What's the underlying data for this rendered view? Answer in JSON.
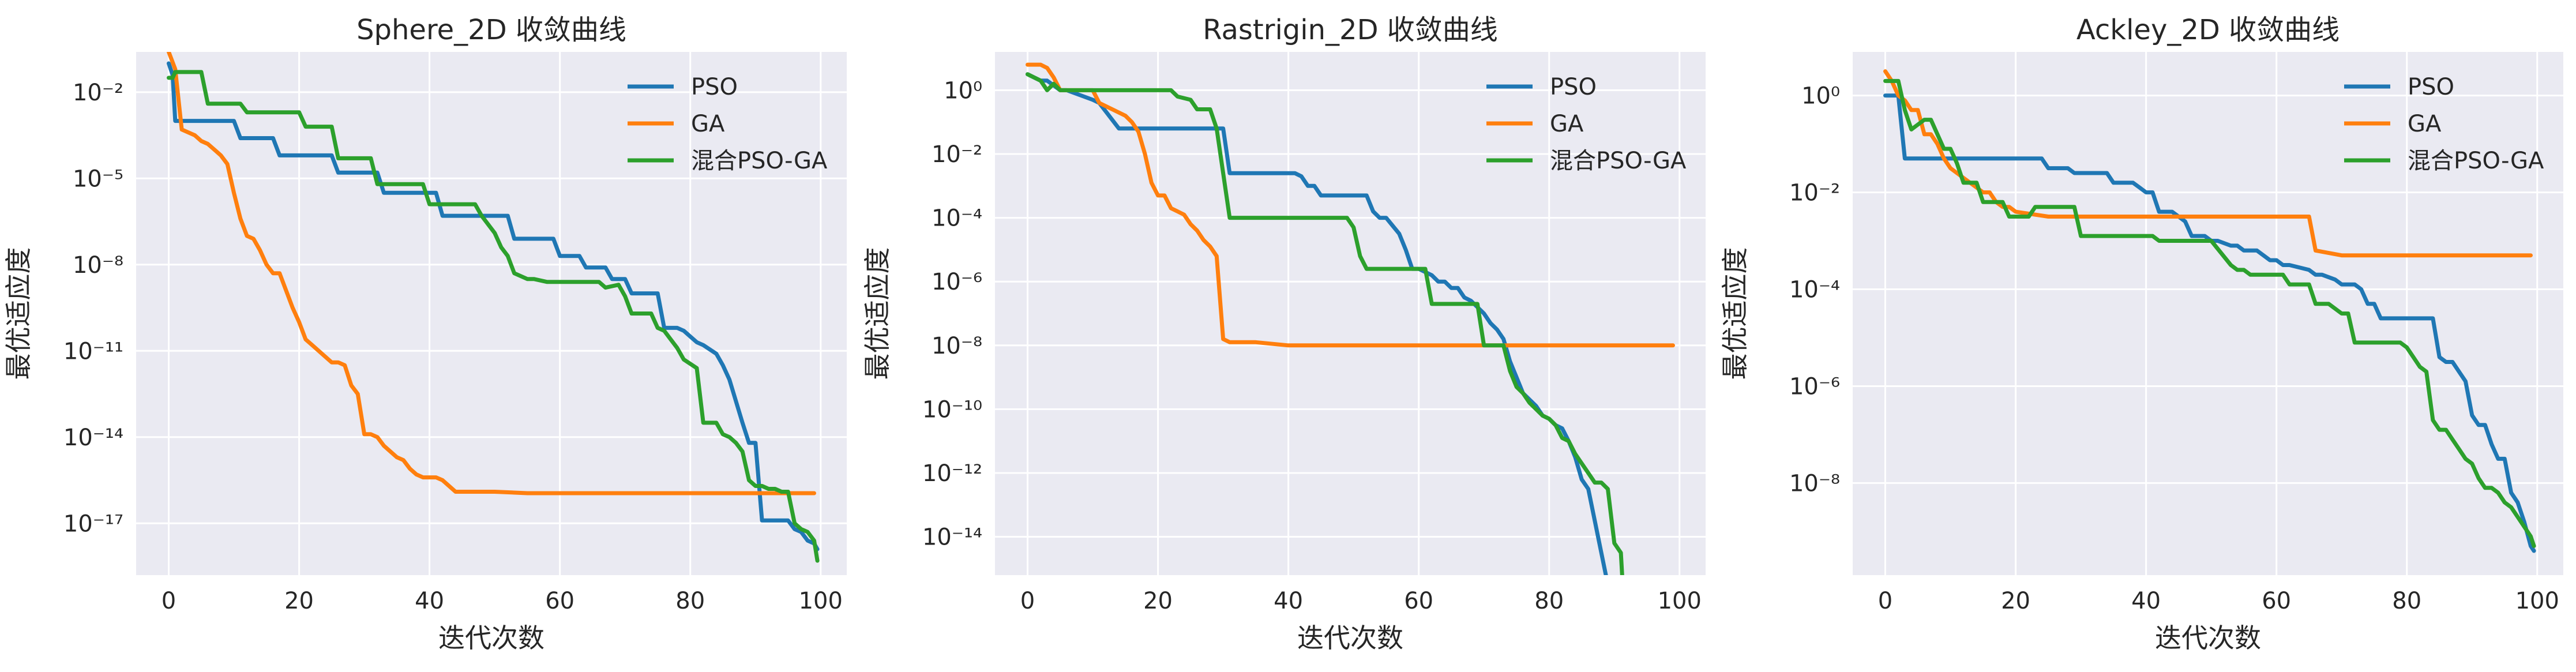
{
  "chart_data": [
    {
      "type": "line",
      "title": "Sphere_2D 收敛曲线",
      "xlabel": "迭代次数",
      "ylabel": "最优适应度",
      "yscale": "log",
      "xlim": [
        -5,
        104
      ],
      "ylim_exp": [
        -18.8,
        -0.6
      ],
      "xticks": [
        0,
        20,
        40,
        60,
        80,
        100
      ],
      "yticks_exp": [
        -17,
        -14,
        -11,
        -8,
        -5,
        -2
      ],
      "grid": true,
      "legend": "top-right",
      "series": [
        {
          "name": "PSO",
          "color": "#1f77b4",
          "x": [
            0,
            0.6,
            1,
            10,
            11,
            16,
            17,
            25,
            26,
            32,
            33,
            41,
            42,
            52,
            53,
            59,
            60,
            63,
            64,
            67,
            68,
            70,
            71,
            75,
            76,
            78,
            79,
            80,
            81,
            82,
            84,
            85,
            86,
            88,
            89,
            90,
            91,
            95,
            96,
            97,
            98,
            99,
            99.5
          ],
          "y_exp": [
            -1,
            -1.4,
            -3,
            -3,
            -3.6,
            -3.6,
            -4.2,
            -4.2,
            -4.8,
            -4.8,
            -5.5,
            -5.5,
            -6.3,
            -6.3,
            -7.1,
            -7.1,
            -7.7,
            -7.7,
            -8.1,
            -8.1,
            -8.5,
            -8.5,
            -9,
            -9,
            -10.2,
            -10.2,
            -10.3,
            -10.5,
            -10.7,
            -10.8,
            -11.1,
            -11.5,
            -12,
            -13.5,
            -14.2,
            -14.2,
            -16.9,
            -16.9,
            -17.2,
            -17.3,
            -17.6,
            -17.7,
            -17.9
          ]
        },
        {
          "name": "GA",
          "color": "#ff7f0e",
          "x": [
            0,
            1,
            2,
            4,
            5,
            6,
            7,
            8,
            9,
            10,
            11,
            12,
            13,
            14,
            15,
            16,
            17,
            18,
            19,
            20,
            21,
            22,
            23,
            24,
            25,
            26,
            27,
            28,
            29,
            30,
            31,
            32,
            33,
            34,
            35,
            36,
            37,
            38,
            39,
            40,
            41,
            42,
            43,
            44,
            45,
            50,
            55,
            60,
            99
          ],
          "y_exp": [
            -0.6,
            -1.2,
            -3.3,
            -3.5,
            -3.7,
            -3.8,
            -4,
            -4.2,
            -4.5,
            -5.5,
            -6.4,
            -7,
            -7.1,
            -7.5,
            -8,
            -8.3,
            -8.3,
            -8.9,
            -9.5,
            -10,
            -10.6,
            -10.8,
            -11,
            -11.2,
            -11.4,
            -11.4,
            -11.5,
            -12.2,
            -12.5,
            -13.9,
            -13.9,
            -14,
            -14.3,
            -14.5,
            -14.7,
            -14.8,
            -15.1,
            -15.3,
            -15.4,
            -15.4,
            -15.4,
            -15.5,
            -15.7,
            -15.9,
            -15.9,
            -15.9,
            -15.95,
            -15.95,
            -15.95
          ]
        },
        {
          "name": "混合PSO-GA",
          "color": "#2ca02c",
          "x": [
            0,
            0.6,
            1,
            5,
            6,
            11,
            12,
            20,
            21,
            25,
            26,
            31,
            32,
            39,
            40,
            47,
            48,
            50,
            51,
            52,
            53,
            54,
            55,
            56,
            58,
            60,
            66,
            67,
            69,
            70,
            71,
            74,
            75,
            76,
            77,
            78,
            79,
            81,
            82,
            84,
            85,
            86,
            87,
            88,
            89,
            90,
            91,
            92,
            93,
            94,
            95,
            96,
            97,
            98,
            99,
            99.5
          ],
          "y_exp": [
            -1.5,
            -1.5,
            -1.3,
            -1.3,
            -2.4,
            -2.4,
            -2.7,
            -2.7,
            -3.2,
            -3.2,
            -4.3,
            -4.3,
            -5.2,
            -5.2,
            -5.9,
            -5.9,
            -6.3,
            -6.9,
            -7.4,
            -7.7,
            -8.3,
            -8.4,
            -8.5,
            -8.5,
            -8.6,
            -8.6,
            -8.6,
            -8.8,
            -8.7,
            -9.1,
            -9.7,
            -9.7,
            -10.2,
            -10.3,
            -10.6,
            -10.9,
            -11.3,
            -11.6,
            -13.5,
            -13.5,
            -13.9,
            -14,
            -14.2,
            -14.5,
            -15.5,
            -15.7,
            -15.7,
            -15.8,
            -15.8,
            -15.9,
            -15.9,
            -17,
            -17.2,
            -17.3,
            -17.6,
            -18.3
          ]
        }
      ]
    },
    {
      "type": "line",
      "title": "Rastrigin_2D 收敛曲线",
      "xlabel": "迭代次数",
      "ylabel": "最优适应度",
      "yscale": "log",
      "xlim": [
        -5,
        104
      ],
      "ylim_exp": [
        -15.2,
        1.2
      ],
      "xticks": [
        0,
        20,
        40,
        60,
        80,
        100
      ],
      "yticks_exp": [
        -14,
        -12,
        -10,
        -8,
        -6,
        -4,
        -2,
        0
      ],
      "grid": true,
      "legend": "top-right",
      "series": [
        {
          "name": "PSO",
          "color": "#1f77b4",
          "x": [
            0,
            2,
            3,
            5,
            6,
            10,
            11,
            14,
            15,
            30,
            31,
            41,
            42,
            43,
            44,
            45,
            46,
            52,
            53,
            54,
            55,
            57,
            58,
            59,
            60,
            61,
            62,
            63,
            64,
            65,
            66,
            67,
            68,
            70,
            71,
            72,
            73,
            74,
            75,
            76,
            78,
            79,
            80,
            81,
            82,
            83,
            84,
            85,
            86,
            87,
            88,
            89,
            90
          ],
          "y_exp": [
            0.5,
            0.3,
            0.3,
            0,
            0,
            -0.3,
            -0.4,
            -1.2,
            -1.2,
            -1.2,
            -2.6,
            -2.6,
            -2.7,
            -3,
            -3,
            -3.3,
            -3.3,
            -3.3,
            -3.8,
            -4,
            -4,
            -4.5,
            -5,
            -5.6,
            -5.6,
            -5.7,
            -5.8,
            -6,
            -6,
            -6.2,
            -6.2,
            -6.5,
            -6.6,
            -7,
            -7.3,
            -7.5,
            -7.8,
            -8.5,
            -9,
            -9.5,
            -9.9,
            -10.2,
            -10.3,
            -10.5,
            -10.6,
            -11,
            -11.5,
            -12.2,
            -12.5,
            -13.5,
            -14.5,
            -15.5,
            -15.5
          ]
        },
        {
          "name": "GA",
          "color": "#ff7f0e",
          "x": [
            0,
            2,
            3,
            4,
            5,
            10,
            11,
            15,
            16,
            17,
            18,
            19,
            20,
            21,
            22,
            23,
            24,
            25,
            26,
            27,
            28,
            29,
            30,
            31,
            35,
            40,
            60,
            70,
            99
          ],
          "y_exp": [
            0.8,
            0.8,
            0.7,
            0.4,
            0,
            0,
            -0.4,
            -0.8,
            -1,
            -1.3,
            -2,
            -2.9,
            -3.3,
            -3.3,
            -3.7,
            -3.8,
            -3.9,
            -4.2,
            -4.4,
            -4.7,
            -4.9,
            -5.2,
            -7.8,
            -7.9,
            -7.9,
            -8,
            -8,
            -8,
            -8
          ]
        },
        {
          "name": "混合PSO-GA",
          "color": "#2ca02c",
          "x": [
            0,
            2,
            3,
            4,
            5,
            22,
            23,
            25,
            26,
            27,
            28,
            29,
            30,
            31,
            40,
            49,
            50,
            51,
            52,
            53,
            61,
            62,
            63,
            69,
            70,
            73,
            74,
            75,
            76,
            77,
            78,
            79,
            80,
            81,
            82,
            83,
            84,
            85,
            86,
            87,
            88,
            89,
            90,
            91,
            91.2
          ],
          "y_exp": [
            0.5,
            0.3,
            0,
            0.2,
            0,
            0,
            -0.2,
            -0.3,
            -0.6,
            -0.6,
            -0.6,
            -1.2,
            -2.6,
            -4,
            -4,
            -4,
            -4.3,
            -5.2,
            -5.6,
            -5.6,
            -5.6,
            -6.7,
            -6.7,
            -6.7,
            -8,
            -8,
            -8.8,
            -9.3,
            -9.5,
            -9.8,
            -10,
            -10.2,
            -10.3,
            -10.5,
            -10.9,
            -11,
            -11.4,
            -11.7,
            -12,
            -12.3,
            -12.3,
            -12.5,
            -14.2,
            -14.5,
            -15.2
          ]
        }
      ]
    },
    {
      "type": "line",
      "title": "Ackley_2D 收敛曲线",
      "xlabel": "迭代次数",
      "ylabel": "最优适应度",
      "yscale": "log",
      "xlim": [
        -5,
        104
      ],
      "ylim_exp": [
        -9.9,
        0.9
      ],
      "xticks": [
        0,
        20,
        40,
        60,
        80,
        100
      ],
      "yticks_exp": [
        -8,
        -6,
        -4,
        -2,
        0
      ],
      "grid": true,
      "legend": "top-right",
      "series": [
        {
          "name": "PSO",
          "color": "#1f77b4",
          "x": [
            0,
            2,
            3,
            10,
            11,
            24,
            25,
            28,
            29,
            34,
            35,
            38,
            39,
            40,
            41,
            42,
            44,
            45,
            46,
            47,
            49,
            50,
            51,
            53,
            54,
            55,
            56,
            57,
            58,
            59,
            60,
            61,
            62,
            65,
            66,
            67,
            69,
            70,
            72,
            73,
            74,
            75,
            76,
            77,
            78,
            80,
            81,
            82,
            83,
            84,
            85,
            86,
            87,
            88,
            89,
            90,
            91,
            92,
            93,
            94,
            95,
            96,
            97,
            98,
            99,
            99.5
          ],
          "y_exp": [
            0,
            0,
            -1.3,
            -1.3,
            -1.3,
            -1.3,
            -1.5,
            -1.5,
            -1.6,
            -1.6,
            -1.8,
            -1.8,
            -1.9,
            -2,
            -2,
            -2.4,
            -2.4,
            -2.5,
            -2.6,
            -2.9,
            -2.9,
            -3,
            -3,
            -3.1,
            -3.1,
            -3.2,
            -3.2,
            -3.2,
            -3.3,
            -3.4,
            -3.4,
            -3.5,
            -3.5,
            -3.6,
            -3.7,
            -3.7,
            -3.8,
            -3.9,
            -3.9,
            -4,
            -4.3,
            -4.3,
            -4.6,
            -4.6,
            -4.6,
            -4.6,
            -4.6,
            -4.6,
            -4.6,
            -4.6,
            -5.4,
            -5.5,
            -5.5,
            -5.7,
            -5.9,
            -6.6,
            -6.8,
            -6.8,
            -7.2,
            -7.5,
            -7.5,
            -8.2,
            -8.4,
            -8.8,
            -9.3,
            -9.4
          ]
        },
        {
          "name": "GA",
          "color": "#ff7f0e",
          "x": [
            0,
            1,
            2,
            3,
            4,
            5,
            6,
            7,
            8,
            9,
            10,
            11,
            12,
            14,
            15,
            16,
            17,
            18,
            19,
            20,
            25,
            30,
            40,
            50,
            60,
            65,
            66,
            70,
            99
          ],
          "y_exp": [
            0.5,
            0.3,
            0,
            -0.1,
            -0.3,
            -0.3,
            -0.8,
            -0.8,
            -1,
            -1.3,
            -1.5,
            -1.6,
            -1.7,
            -1.9,
            -2,
            -2,
            -2.2,
            -2.3,
            -2.3,
            -2.4,
            -2.5,
            -2.5,
            -2.5,
            -2.5,
            -2.5,
            -2.5,
            -3.2,
            -3.3,
            -3.3
          ]
        },
        {
          "name": "混合PSO-GA",
          "color": "#2ca02c",
          "x": [
            0,
            2,
            3,
            4,
            5,
            6,
            7,
            8,
            9,
            10,
            11,
            12,
            13,
            14,
            15,
            17,
            18,
            19,
            20,
            22,
            23,
            29,
            30,
            41,
            42,
            49,
            50,
            53,
            54,
            55,
            56,
            61,
            62,
            64,
            65,
            66,
            68,
            70,
            71,
            72,
            77,
            78,
            79,
            80,
            81,
            82,
            83,
            84,
            85,
            86,
            87,
            88,
            89,
            90,
            91,
            92,
            93,
            94,
            95,
            96,
            97,
            98,
            99,
            99.5
          ],
          "y_exp": [
            0.3,
            0.3,
            -0.3,
            -0.7,
            -0.6,
            -0.5,
            -0.5,
            -0.8,
            -1.1,
            -1.1,
            -1.4,
            -1.8,
            -1.8,
            -1.8,
            -2.2,
            -2.2,
            -2.2,
            -2.5,
            -2.5,
            -2.5,
            -2.3,
            -2.3,
            -2.9,
            -2.9,
            -3,
            -3,
            -3,
            -3.5,
            -3.6,
            -3.6,
            -3.7,
            -3.7,
            -3.9,
            -3.9,
            -3.9,
            -4.3,
            -4.3,
            -4.5,
            -4.5,
            -5.1,
            -5.1,
            -5.1,
            -5.1,
            -5.2,
            -5.4,
            -5.6,
            -5.7,
            -6.7,
            -6.9,
            -6.9,
            -7.1,
            -7.3,
            -7.5,
            -7.6,
            -7.9,
            -8.1,
            -8.1,
            -8.2,
            -8.4,
            -8.5,
            -8.7,
            -8.9,
            -9.1,
            -9.3
          ]
        }
      ]
    }
  ]
}
